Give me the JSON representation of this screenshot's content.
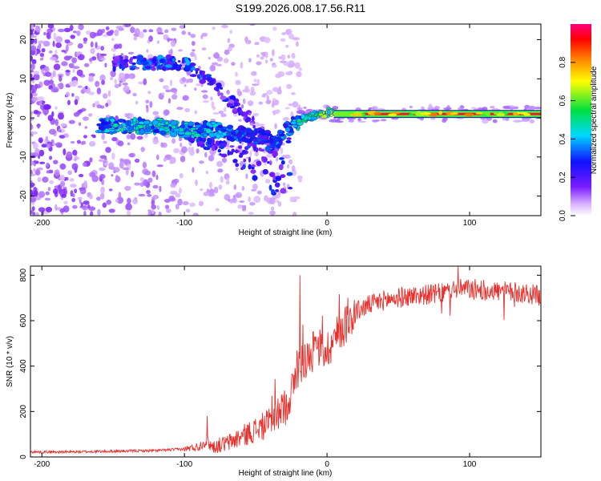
{
  "title": "S199.2026.008.17.56.R11",
  "colors": {
    "background": "#ffffff",
    "snr_line": "#e8302c",
    "axis": "#000000",
    "track_red": "#e0202a",
    "track_green": "#2ec83c"
  },
  "chart_data": [
    {
      "type": "heatmap",
      "name": "spectrogram",
      "xlabel": "Height of straight line (km)",
      "ylabel": "Frequency (Hz)",
      "xlim": [
        -208,
        150
      ],
      "ylim": [
        -25,
        24
      ],
      "xticks": [
        -200,
        -100,
        0,
        100
      ],
      "xtick_labels": [
        "-200",
        "-100",
        "0",
        "100"
      ],
      "yticks": [
        20,
        10,
        0,
        -10,
        -20
      ],
      "ytick_labels": [
        "20",
        "10",
        "0",
        "-10",
        "-20"
      ],
      "colorbar": {
        "label": "Normalized spectral amplitude",
        "range": [
          0,
          1
        ],
        "ticks": [
          0.0,
          0.2,
          0.4,
          0.6,
          0.8
        ],
        "tick_labels": [
          "0.0",
          "0.2",
          "0.4",
          "0.6",
          "0.8"
        ],
        "colormap": "rainbow (white-violet-blue-cyan-green-yellow-red-magenta)"
      },
      "main_track": {
        "description": "dominant frequency ridge vs height",
        "x": [
          -160,
          -140,
          -120,
          -100,
          -80,
          -60,
          -45,
          -35,
          -25,
          -15,
          -5,
          5,
          20,
          40,
          80,
          120,
          150
        ],
        "freq": [
          -2,
          -2,
          -2,
          -3,
          -3,
          -4,
          -5,
          -6,
          -2,
          0,
          1,
          1.5,
          1,
          1,
          1,
          1,
          1
        ],
        "amplitude": [
          0.35,
          0.4,
          0.4,
          0.4,
          0.35,
          0.3,
          0.25,
          0.3,
          0.35,
          0.45,
          0.5,
          0.55,
          0.8,
          0.85,
          0.85,
          0.85,
          0.85
        ]
      },
      "upper_track": {
        "description": "descending secondary ridge",
        "x": [
          -150,
          -130,
          -100,
          -85,
          -70,
          -55,
          -45,
          -35
        ],
        "freq": [
          14,
          14,
          14,
          10,
          5,
          0,
          -4,
          -8
        ],
        "amplitude": [
          0.3,
          0.3,
          0.35,
          0.3,
          0.25,
          0.2,
          0.2,
          0.15
        ]
      }
    },
    {
      "type": "line",
      "name": "snr",
      "xlabel": "Height of straight line (km)",
      "ylabel": "SNR (10 * v/v)",
      "xlim": [
        -208,
        150
      ],
      "ylim": [
        0,
        840
      ],
      "xticks": [
        -200,
        -100,
        0,
        100
      ],
      "xtick_labels": [
        "-200",
        "-100",
        "0",
        "100"
      ],
      "yticks": [
        0,
        200,
        400,
        600,
        800
      ],
      "ytick_labels": [
        "0",
        "200",
        "400",
        "600",
        "800"
      ],
      "series": [
        {
          "name": "SNR",
          "x": [
            -208,
            -180,
            -150,
            -120,
            -100,
            -90,
            -85,
            -80,
            -70,
            -60,
            -50,
            -40,
            -30,
            -25,
            -20,
            -15,
            -10,
            -5,
            0,
            5,
            10,
            15,
            20,
            30,
            40,
            60,
            80,
            90,
            100,
            120,
            140,
            150
          ],
          "y": [
            22,
            22,
            25,
            28,
            35,
            45,
            70,
            45,
            60,
            90,
            120,
            150,
            220,
            280,
            400,
            430,
            460,
            480,
            470,
            520,
            560,
            600,
            640,
            670,
            690,
            710,
            720,
            740,
            740,
            730,
            720,
            710
          ],
          "spikes": [
            {
              "x": -84,
              "y": 180
            },
            {
              "x": -19,
              "y": 800
            },
            {
              "x": 92,
              "y": 840
            }
          ]
        }
      ]
    }
  ]
}
